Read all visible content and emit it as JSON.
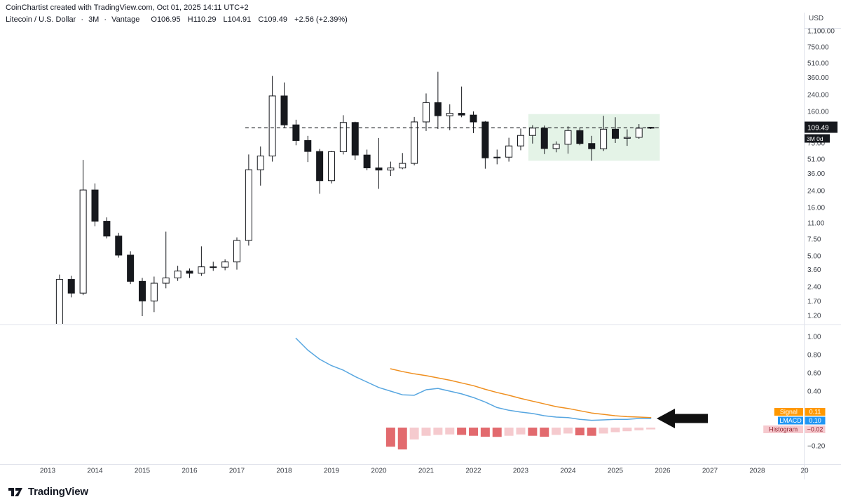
{
  "header": {
    "credit": "CoinChartist created with TradingView.com, Oct 01, 2025 14:11 UTC+2",
    "symbol": "Litecoin / U.S. Dollar",
    "sep": "·",
    "interval": "3M",
    "exchange": "Vantage",
    "ohlc": {
      "o_label": "O",
      "o": "106.95",
      "h_label": "H",
      "h": "110.29",
      "l_label": "L",
      "l": "104.91",
      "c_label": "C",
      "c": "109.49",
      "change": "+2.56 (+2.39%)"
    }
  },
  "price_axis": {
    "currency": "USD",
    "ticks": [
      {
        "label": "1,100.00",
        "value": 1100
      },
      {
        "label": "750.00",
        "value": 750
      },
      {
        "label": "510.00",
        "value": 510
      },
      {
        "label": "360.00",
        "value": 360
      },
      {
        "label": "240.00",
        "value": 240
      },
      {
        "label": "160.00",
        "value": 160
      },
      {
        "label": "75.00",
        "value": 75
      },
      {
        "label": "51.00",
        "value": 51
      },
      {
        "label": "36.00",
        "value": 36
      },
      {
        "label": "24.00",
        "value": 24
      },
      {
        "label": "16.00",
        "value": 16
      },
      {
        "label": "11.00",
        "value": 11
      },
      {
        "label": "7.50",
        "value": 7.5
      },
      {
        "label": "5.00",
        "value": 5
      },
      {
        "label": "3.60",
        "value": 3.6
      },
      {
        "label": "2.40",
        "value": 2.4
      },
      {
        "label": "1.70",
        "value": 1.7
      },
      {
        "label": "1.20",
        "value": 1.2
      }
    ],
    "last_price": {
      "label": "109.49",
      "countdown": "3M 0d"
    }
  },
  "indicator_axis": {
    "ticks": [
      {
        "label": "1.00",
        "value": 1.0
      },
      {
        "label": "0.80",
        "value": 0.8
      },
      {
        "label": "0.60",
        "value": 0.6
      },
      {
        "label": "0.40",
        "value": 0.4
      },
      {
        "label": "−0.20",
        "value": -0.2
      }
    ],
    "badges": [
      {
        "name": "Signal",
        "value": "0.11",
        "bg": "#ff9800",
        "fg": "#ffffff"
      },
      {
        "name": "LMACD",
        "value": "0.10",
        "bg": "#2196f3",
        "fg": "#ffffff"
      },
      {
        "name": "Histogram",
        "value": "−0.02",
        "bg": "#f6c9ce",
        "fg": "#8f1f2c"
      }
    ]
  },
  "time_axis": {
    "labels": [
      "2013",
      "2014",
      "2015",
      "2016",
      "2017",
      "2018",
      "2019",
      "2020",
      "2021",
      "2022",
      "2023",
      "2024",
      "2025",
      "2026",
      "2027",
      "2028",
      "20"
    ]
  },
  "footer": {
    "brand": "TradingView"
  },
  "chart_data": {
    "type": "candlestick",
    "title": "Litecoin / U.S. Dollar · 3M · Vantage",
    "price_scale": "log",
    "price_ylim": [
      0.98,
      1221
    ],
    "colors": {
      "up_fill": "#ffffff",
      "down_fill": "#16181d",
      "outline": "#16181d",
      "wick": "#16181d",
      "dashed_line": "#16181d",
      "box_fill": "rgba(103,190,121,0.18)",
      "lmacd": "#57a6e0",
      "signal": "#ef8f1f",
      "hist_falling": "#e26a6e",
      "hist_rising": "#f5cace",
      "arrow": "#101010"
    },
    "candles": [
      [
        2013,
        2,
        0.6,
        3.2,
        0.5,
        2.85
      ],
      [
        2013,
        3,
        2.85,
        3.1,
        1.85,
        2.05
      ],
      [
        2013,
        4,
        2.05,
        50.0,
        1.95,
        24.3
      ],
      [
        2014,
        1,
        24.3,
        28.5,
        10.2,
        11.5
      ],
      [
        2014,
        2,
        11.5,
        12.6,
        7.6,
        8.05
      ],
      [
        2014,
        3,
        8.05,
        8.7,
        4.8,
        5.1
      ],
      [
        2014,
        4,
        5.1,
        5.6,
        2.55,
        2.72
      ],
      [
        2015,
        1,
        2.72,
        2.95,
        1.18,
        1.7
      ],
      [
        2015,
        2,
        1.7,
        3.05,
        1.3,
        2.6
      ],
      [
        2015,
        3,
        2.6,
        8.95,
        2.3,
        2.95
      ],
      [
        2015,
        4,
        2.95,
        3.95,
        2.75,
        3.48
      ],
      [
        2016,
        1,
        3.48,
        3.7,
        2.95,
        3.3
      ],
      [
        2016,
        2,
        3.3,
        6.3,
        3.1,
        3.85
      ],
      [
        2016,
        3,
        3.85,
        4.35,
        3.5,
        3.82
      ],
      [
        2016,
        4,
        3.82,
        4.6,
        3.55,
        4.33
      ],
      [
        2017,
        1,
        4.33,
        7.8,
        3.6,
        7.25
      ],
      [
        2017,
        2,
        7.25,
        57.0,
        6.4,
        39.5
      ],
      [
        2017,
        3,
        39.5,
        69.0,
        27.0,
        54.9
      ],
      [
        2017,
        4,
        54.9,
        375.0,
        48.0,
        231.7
      ],
      [
        2018,
        1,
        231.7,
        320.0,
        107.0,
        115.8
      ],
      [
        2018,
        2,
        115.8,
        131.0,
        71.0,
        79.6
      ],
      [
        2018,
        3,
        79.6,
        89.0,
        47.5,
        61.2
      ],
      [
        2018,
        4,
        61.2,
        65.0,
        22.2,
        30.4
      ],
      [
        2019,
        1,
        30.4,
        62.0,
        28.5,
        60.8
      ],
      [
        2019,
        2,
        60.8,
        146.0,
        57.0,
        122.6
      ],
      [
        2019,
        3,
        122.6,
        125.0,
        50.0,
        56.2
      ],
      [
        2019,
        4,
        56.2,
        64.0,
        39.0,
        41.3
      ],
      [
        2020,
        1,
        41.3,
        84.5,
        25.0,
        39.2
      ],
      [
        2020,
        2,
        39.2,
        48.0,
        34.0,
        41.2
      ],
      [
        2020,
        3,
        41.2,
        59.0,
        40.0,
        46.0
      ],
      [
        2020,
        4,
        46.0,
        140.0,
        44.0,
        124.3
      ],
      [
        2021,
        1,
        124.3,
        246.0,
        100.0,
        197.5
      ],
      [
        2021,
        2,
        197.5,
        413.0,
        105.0,
        144.2
      ],
      [
        2021,
        3,
        144.2,
        190.0,
        102.0,
        152.9
      ],
      [
        2021,
        4,
        152.9,
        290.0,
        139.0,
        146.5
      ],
      [
        2022,
        1,
        146.5,
        160.0,
        95.0,
        124.2
      ],
      [
        2022,
        2,
        124.2,
        127.0,
        40.5,
        52.5
      ],
      [
        2022,
        3,
        52.5,
        64.0,
        45.0,
        53.4
      ],
      [
        2022,
        4,
        53.4,
        85.0,
        48.0,
        69.9
      ],
      [
        2023,
        1,
        69.9,
        106.0,
        63.0,
        89.9
      ],
      [
        2023,
        2,
        89.9,
        115.0,
        74.0,
        107.2
      ],
      [
        2023,
        3,
        107.2,
        114.0,
        57.5,
        65.7
      ],
      [
        2023,
        4,
        65.7,
        78.0,
        60.0,
        72.8
      ],
      [
        2024,
        1,
        72.8,
        112.0,
        58.0,
        101.0
      ],
      [
        2024,
        2,
        101.0,
        109.0,
        71.0,
        74.1
      ],
      [
        2024,
        3,
        74.1,
        89.0,
        49.0,
        65.4
      ],
      [
        2024,
        4,
        65.4,
        144.0,
        62.0,
        104.4
      ],
      [
        2025,
        1,
        104.4,
        139.0,
        75.0,
        83.9
      ],
      [
        2025,
        2,
        83.9,
        104.0,
        70.0,
        85.9
      ],
      [
        2025,
        3,
        85.9,
        118.0,
        83.0,
        106.9
      ],
      [
        2025,
        4,
        106.95,
        110.29,
        104.91,
        109.49
      ]
    ],
    "indicator": {
      "name": "LMACD",
      "ylim": [
        -0.4,
        1.13
      ],
      "lmacd_start": "2018-Q2",
      "lmacd": [
        0.98,
        0.85,
        0.75,
        0.68,
        0.63,
        0.56,
        0.5,
        0.44,
        0.4,
        0.36,
        0.355,
        0.415,
        0.43,
        0.4,
        0.37,
        0.33,
        0.28,
        0.22,
        0.19,
        0.17,
        0.155,
        0.13,
        0.115,
        0.11,
        0.09,
        0.08,
        0.085,
        0.09,
        0.09,
        0.1,
        0.1
      ],
      "signal_start": "2020-Q2",
      "signal": [
        0.645,
        0.615,
        0.59,
        0.57,
        0.545,
        0.52,
        0.49,
        0.46,
        0.42,
        0.385,
        0.355,
        0.32,
        0.29,
        0.26,
        0.23,
        0.21,
        0.185,
        0.16,
        0.145,
        0.13,
        0.12,
        0.115,
        0.11
      ],
      "histogram_start": "2020-Q2",
      "histogram": [
        -0.21,
        -0.24,
        -0.13,
        -0.09,
        -0.08,
        -0.075,
        -0.08,
        -0.09,
        -0.1,
        -0.102,
        -0.09,
        -0.075,
        -0.09,
        -0.1,
        -0.08,
        -0.065,
        -0.085,
        -0.09,
        -0.065,
        -0.05,
        -0.04,
        -0.03,
        -0.02
      ]
    },
    "annotations": {
      "dashed_level": {
        "price": 108,
        "from": "2017-Q2",
        "to": "2025-Q4"
      },
      "highlight_box": {
        "from": "2023-Q2",
        "to": "2026-Q1",
        "price_top": 150,
        "price_bottom": 49
      },
      "arrow_left": {
        "pane": "indicator",
        "points_to": "lmacd-signal-convergence"
      }
    }
  }
}
